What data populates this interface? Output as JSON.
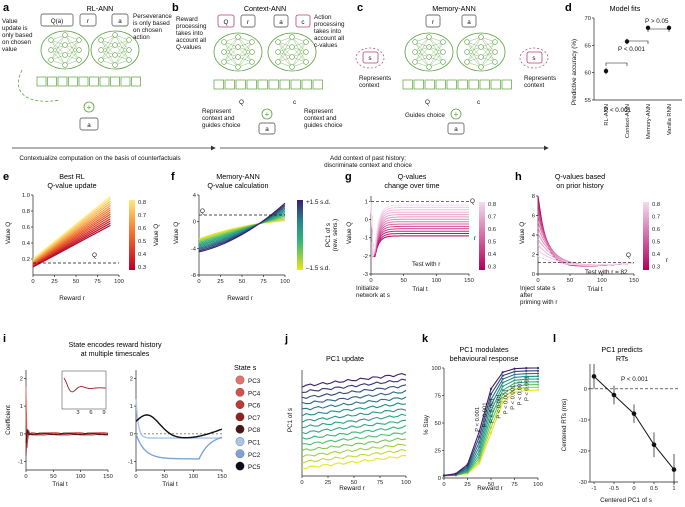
{
  "panels": {
    "a": {
      "letter": "a",
      "title": "RL-ANN",
      "q": "Q(a)",
      "r": "r",
      "ra": "a",
      "left_note": [
        "Value",
        "update is",
        "only based",
        "on chosen",
        "value"
      ],
      "right_note": [
        "Perseverance",
        "is only based",
        "on chosen",
        "action"
      ],
      "out": "a"
    },
    "b": {
      "letter": "b",
      "title": "Context-ANN",
      "q": "Q",
      "r": "r",
      "a": "a",
      "c": "c",
      "left_note": [
        "Reward",
        "processing",
        "takes into",
        "account all",
        "Q-values"
      ],
      "right_note": [
        "Action",
        "processing",
        "takes into",
        "account all",
        "c-values"
      ],
      "q_in": "Q",
      "c_in": "c",
      "note_l": [
        "Represent",
        "context and",
        "guides choice"
      ],
      "note_r": [
        "Represent",
        "context and",
        "guides choice"
      ],
      "out": "a"
    },
    "c": {
      "letter": "c",
      "title": "Memory-ANN",
      "r": "r",
      "a": "a",
      "s_l": "s",
      "s_r": "s",
      "note_l": [
        "Represents",
        "context"
      ],
      "note_r": [
        "Represents",
        "context"
      ],
      "q_in": "Q",
      "c_in": "c",
      "guides": "Guides choice",
      "out": "a"
    },
    "d": {
      "letter": "d",
      "title": "Model fits",
      "ylabel": "Predictive accuracy (%)",
      "p1": "P < 0.001",
      "p2": "P < 0.001",
      "p3": "P > 0.05"
    },
    "arrows": {
      "left": "Contextualize computation on the basis of counterfactuals",
      "right": [
        "Add context of past history;",
        "discriminate context and choice"
      ]
    },
    "e": {
      "letter": "e",
      "title": [
        "Best RL",
        "Q-value update"
      ],
      "ylabel": "Value Q",
      "xlabel": "Reward r",
      "qinit": "Q",
      "cbar_label": "Value Q",
      "cbar_ticks": [
        "0.8",
        "0.7",
        "0.6",
        "0.5",
        "0.4",
        "0.3"
      ]
    },
    "f": {
      "letter": "f",
      "title": [
        "Memory-ANN",
        "Q-value calculation"
      ],
      "ylabel": "Value Q",
      "xlabel": "Reward r",
      "qinit": "Q",
      "cbar_label": [
        "PC1 of s",
        "(rew. sens.)"
      ],
      "cbar_top": "+1.5 s.d.",
      "cbar_bot": "–1.5 s.d."
    },
    "g": {
      "letter": "g",
      "title": [
        "Q-values",
        "change over time"
      ],
      "ylabel": "Value Q",
      "xlabel": "Trial t",
      "qinit": "Q",
      "cbar_label": "r",
      "cbar_ticks": [
        "0.8",
        "0.7",
        "0.6",
        "0.5",
        "0.4",
        "0.3"
      ],
      "test_note": "Test with r",
      "init_note": [
        "Initialize",
        "network at s"
      ]
    },
    "h": {
      "letter": "h",
      "title": [
        "Q-values based",
        "on prior history"
      ],
      "ylabel": "Value Q",
      "xlabel": "Trial t",
      "qinit": "Q",
      "test_note": "Test with r",
      "test_val": "= 82",
      "cbar_label": "r",
      "cbar_ticks": [
        "0.8",
        "0.7",
        "0.6",
        "0.5",
        "0.4",
        "0.3"
      ],
      "inject_note": [
        "Inject state s",
        "after",
        "priming with r"
      ]
    },
    "i": {
      "letter": "i",
      "title": [
        "State encodes reward history",
        "at multiple timescales"
      ],
      "ylabel": "Coefficient",
      "xlabel": "Trial t",
      "legend_title": "State s",
      "legend": [
        {
          "name": "PC3",
          "color": "#e8736a"
        },
        {
          "name": "PC4",
          "color": "#d4524d"
        },
        {
          "name": "PC6",
          "color": "#b83a3a"
        },
        {
          "name": "PC7",
          "color": "#8e2323"
        },
        {
          "name": "PC8",
          "color": "#4a1414"
        },
        {
          "name": "PC1",
          "color": "#a9c6e8"
        },
        {
          "name": "PC2",
          "color": "#7da4d8"
        },
        {
          "name": "PC5",
          "color": "#0d0d1a"
        }
      ]
    },
    "j": {
      "letter": "j",
      "title": "PC1 update",
      "ylabel": "PC1 of s",
      "xlabel": "Reward r"
    },
    "k": {
      "letter": "k",
      "title": [
        "PC1 modulates",
        "behavioural response"
      ],
      "ylabel": "% Stay",
      "xlabel": "Reward r",
      "pvals": [
        "P < 0.001",
        "P < 0.001",
        "P < 0.001",
        "P < 0.001",
        "P < 0.001",
        "P < 0.001",
        "P < 0.001",
        "P < 0.001"
      ]
    },
    "l": {
      "letter": "l",
      "title": [
        "PC1 predicts",
        "RTs"
      ],
      "ylabel": "Centered RTs (ms)",
      "xlabel": "Centered PC1 of s",
      "pval": "P < 0.001"
    }
  },
  "chart_data": [
    {
      "type": "scatter",
      "panel": "d",
      "title": "Model fits",
      "ylabel": "Predictive accuracy (%)",
      "categories": [
        "RL-ANN",
        "Context-ANN",
        "Memory-ANN",
        "Vanilla RNN"
      ],
      "values": [
        60.3,
        65.7,
        68.2,
        68.2
      ],
      "ylim": [
        55,
        70
      ],
      "yticks": [
        55,
        60,
        65,
        70
      ]
    },
    {
      "type": "line",
      "panel": "e",
      "xlabel": "Reward r",
      "ylabel": "Value Q",
      "xlim": [
        0,
        100
      ],
      "ylim": [
        0,
        1
      ],
      "xticks": [
        0,
        25,
        50,
        75,
        100
      ],
      "yticks": [
        0.2,
        0.4,
        0.6,
        0.8,
        1.0
      ],
      "qinit": 0.15
    },
    {
      "type": "line",
      "panel": "f",
      "xlabel": "Reward r",
      "ylabel": "Value Q",
      "xlim": [
        0,
        100
      ],
      "ylim": [
        -8,
        4
      ],
      "xticks": [
        0,
        25,
        50,
        75,
        100
      ],
      "yticks": [
        -8,
        -4,
        0,
        4
      ],
      "qinit": 1
    },
    {
      "type": "line",
      "panel": "g",
      "xlabel": "Trial t",
      "ylabel": "Value Q",
      "xlim": [
        0,
        150
      ],
      "ylim": [
        -3,
        1.3
      ],
      "xticks": [
        0,
        50,
        100,
        150
      ],
      "yticks": [
        -3,
        -2,
        -1,
        0,
        1
      ],
      "qinit": 1
    },
    {
      "type": "line",
      "panel": "h",
      "xlabel": "Trial t",
      "ylabel": "Value Q",
      "xlim": [
        0,
        150
      ],
      "ylim": [
        0,
        8
      ],
      "xticks": [
        0,
        50,
        100,
        150
      ],
      "yticks": [
        0,
        2,
        4,
        6,
        8
      ],
      "qinit": 1.2
    },
    {
      "type": "line",
      "panel": "i",
      "xlabel": "Trial t",
      "ylabel": "Coefficient",
      "xticks": [
        0,
        50,
        100,
        150
      ],
      "yticks_left": [
        -1,
        0,
        1,
        2
      ],
      "yticks_right": [
        -1,
        0,
        1,
        2
      ]
    },
    {
      "type": "line",
      "panel": "j",
      "xlabel": "Reward r",
      "ylabel": "PC1 of s",
      "xticks": [
        0,
        25,
        50,
        75,
        100
      ]
    },
    {
      "type": "line",
      "panel": "k",
      "xlabel": "Reward r",
      "ylabel": "% Stay",
      "xlim": [
        0,
        100
      ],
      "ylim": [
        0,
        100
      ],
      "xticks": [
        0,
        25,
        50,
        75,
        100
      ],
      "yticks": [
        0,
        25,
        50,
        75,
        100
      ]
    },
    {
      "type": "line",
      "panel": "l",
      "xlabel": "Centered PC1 of s",
      "ylabel": "Centered RTs (ms)",
      "x": [
        -1,
        -0.5,
        0,
        0.5,
        1
      ],
      "values": [
        4,
        -2,
        -8,
        -18,
        -26
      ],
      "xticks": [
        -1.0,
        -0.5,
        0,
        0.5,
        1.0
      ],
      "yticks": [
        -30,
        -20,
        -10,
        0
      ],
      "ylim": [
        -30,
        8
      ]
    }
  ]
}
